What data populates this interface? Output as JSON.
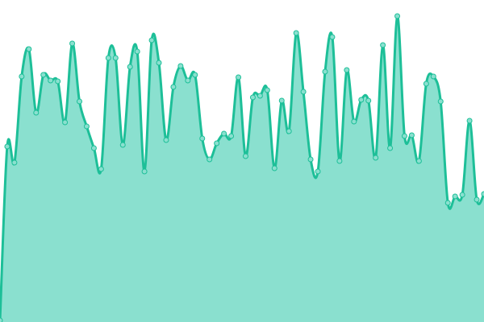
{
  "chart_data": {
    "type": "area",
    "title": "",
    "xlabel": "",
    "ylabel": "",
    "ylim": [
      0,
      400
    ],
    "grid": false,
    "legend": "none",
    "x": [
      0,
      1,
      2,
      3,
      4,
      5,
      6,
      7,
      8,
      9,
      10,
      11,
      12,
      13,
      14,
      15,
      16,
      17,
      18,
      19,
      20,
      21,
      22,
      23,
      24,
      25,
      26,
      27,
      28,
      29,
      30,
      31,
      32,
      33,
      34,
      35,
      36,
      37,
      38,
      39,
      40,
      41,
      42,
      43,
      44,
      45,
      46,
      47,
      48,
      49,
      50,
      51,
      52,
      53,
      54,
      55,
      56,
      57,
      58,
      59,
      60,
      61,
      62,
      63,
      64,
      65,
      66,
      67
    ],
    "series": [
      {
        "values": [
          2,
          218,
          198,
          305,
          339,
          260,
          307,
          300,
          299,
          248,
          346,
          274,
          243,
          216,
          190,
          328,
          328,
          220,
          317,
          336,
          187,
          350,
          322,
          226,
          292,
          318,
          300,
          307,
          228,
          202,
          222,
          234,
          231,
          304,
          206,
          279,
          281,
          288,
          191,
          275,
          237,
          359,
          286,
          202,
          187,
          311,
          354,
          200,
          313,
          249,
          276,
          275,
          204,
          344,
          216,
          380,
          231,
          232,
          200,
          296,
          305,
          274,
          148,
          156,
          158,
          250,
          152,
          159
        ]
      }
    ],
    "colors": {
      "line": "#1dbf98",
      "fill": "#8ae0cf",
      "point": "#8ae0cf"
    }
  }
}
